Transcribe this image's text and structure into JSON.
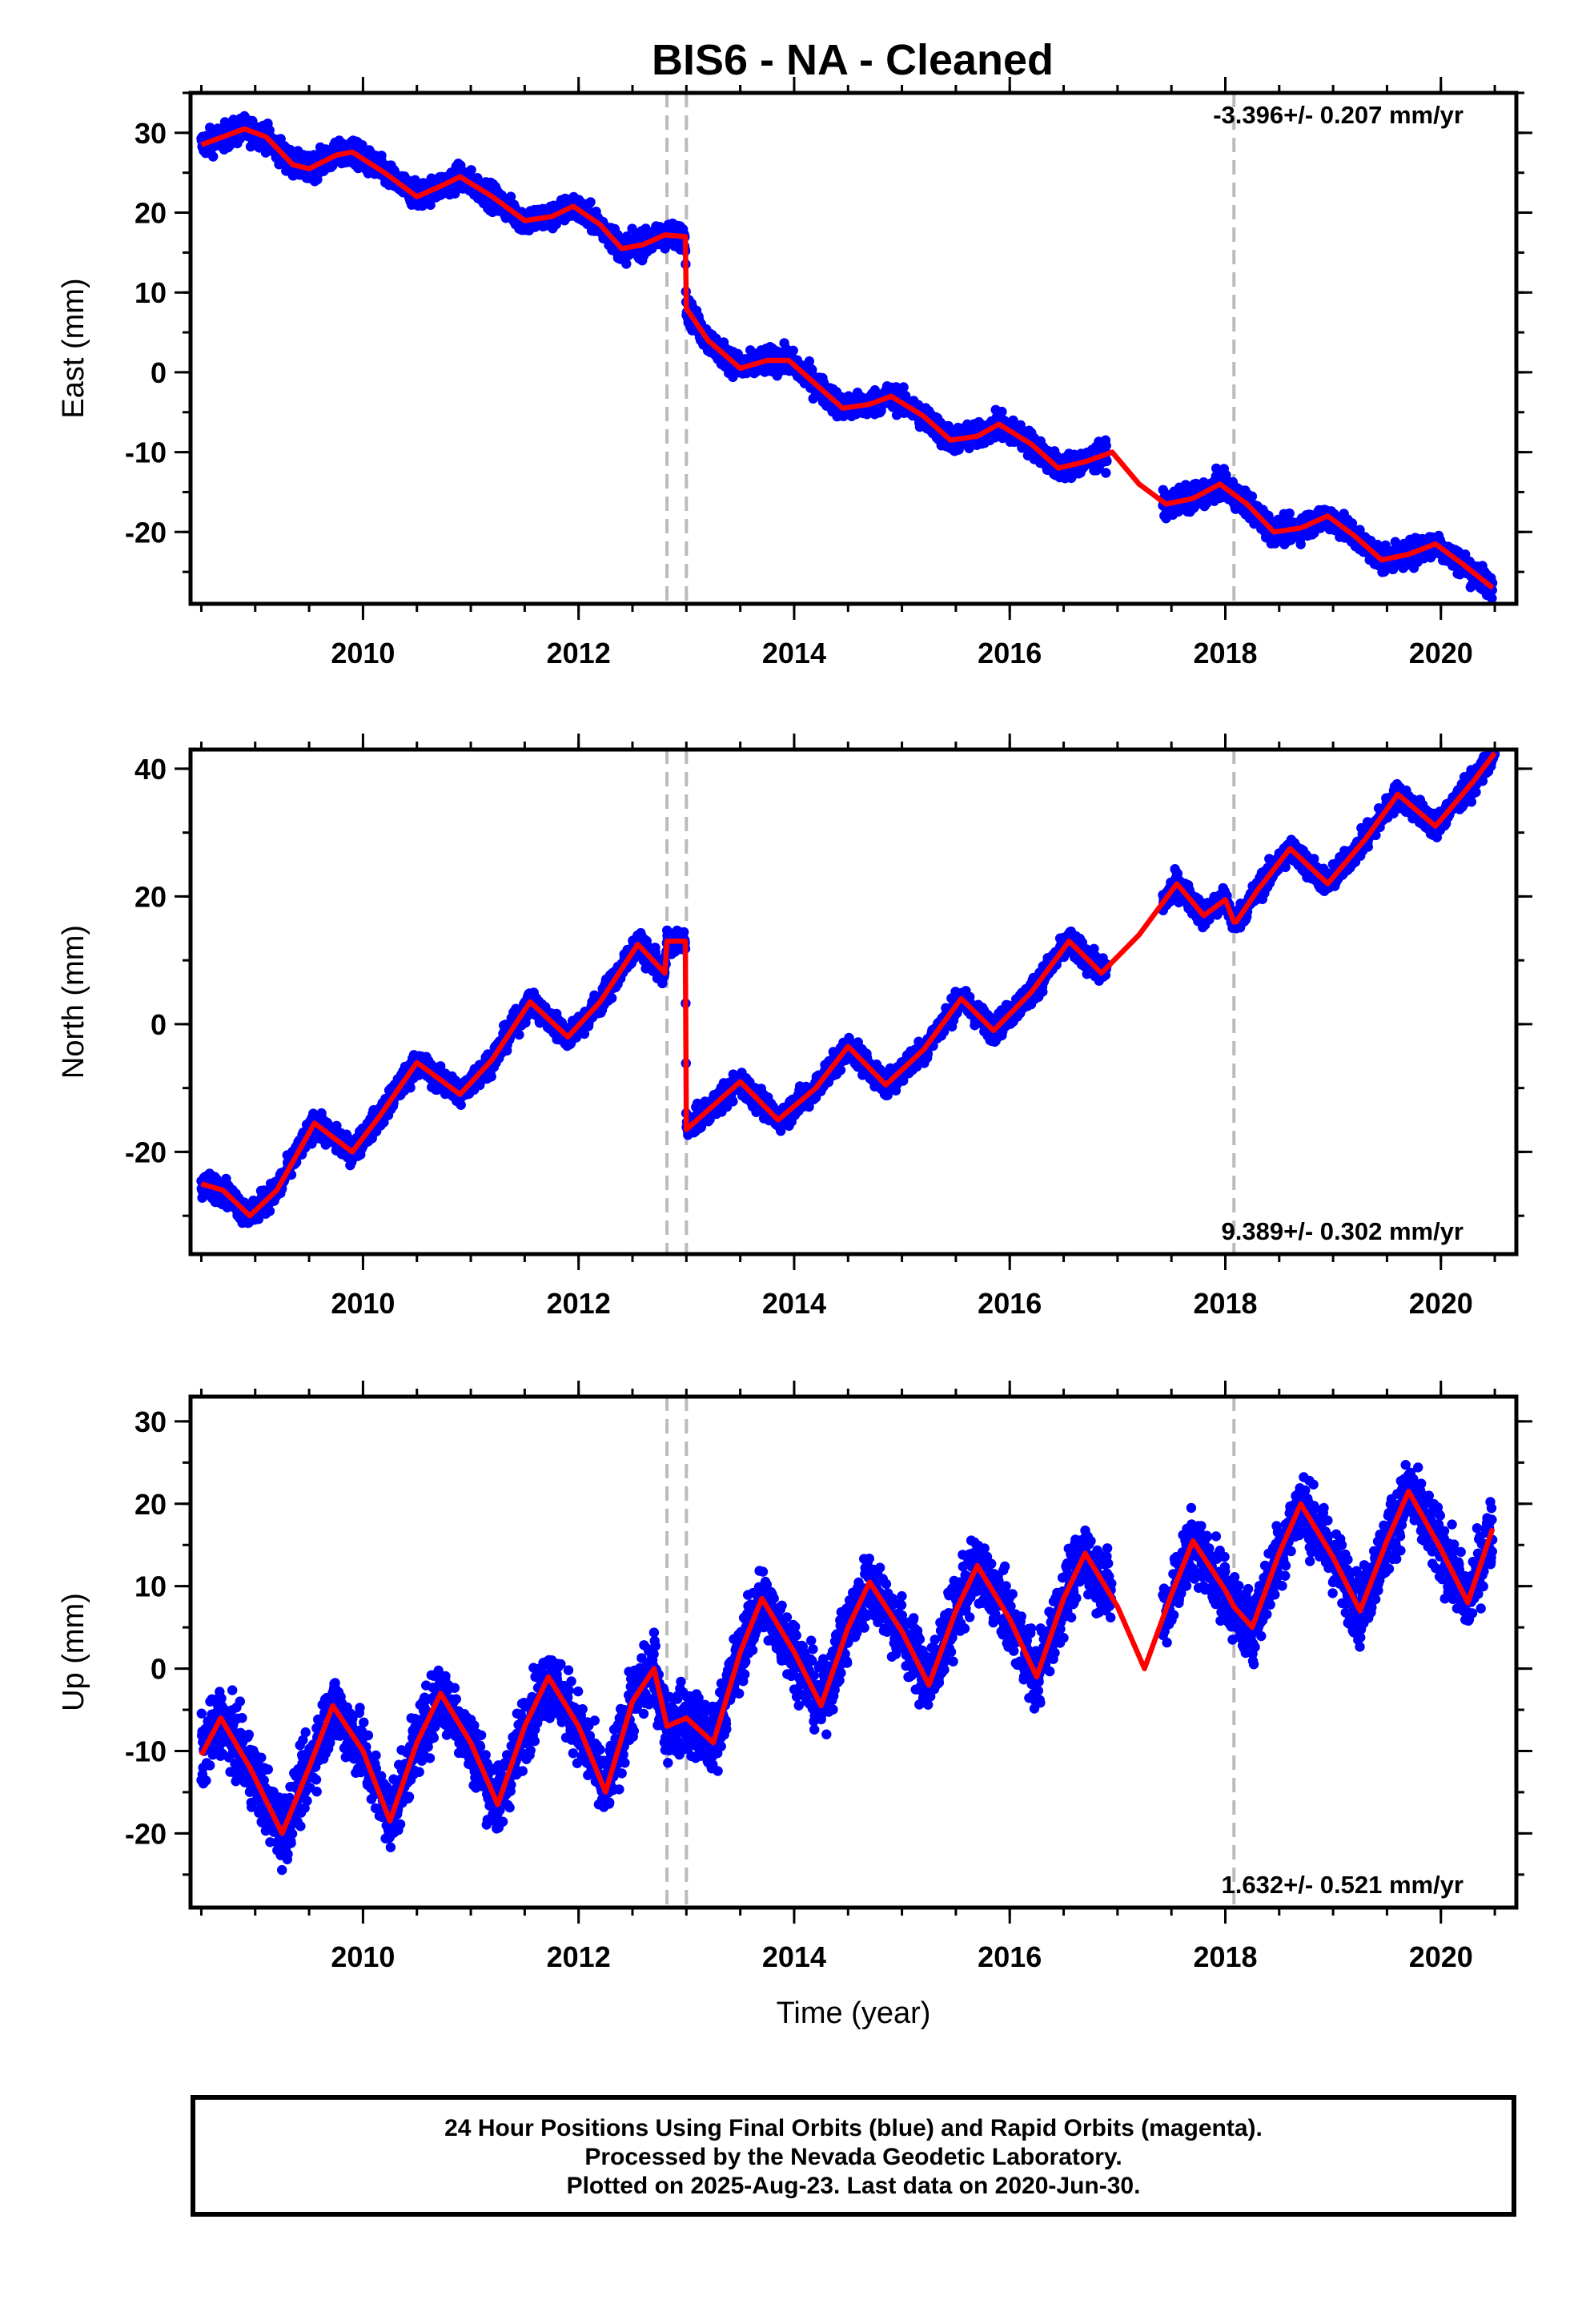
{
  "title": "BIS6  - NA - Cleaned",
  "colors": {
    "points": "#0000ff",
    "model": "#ff0000",
    "breaks": "#bbbbbb",
    "frame": "#000000"
  },
  "chart_data": [
    {
      "type": "scatter",
      "name": "east",
      "ylabel": "East (mm)",
      "xlabel": "",
      "xlim": [
        2008.4,
        2020.7
      ],
      "ylim": [
        -29,
        35
      ],
      "xticks": [
        2010,
        2012,
        2014,
        2016,
        2018,
        2020
      ],
      "yticks": [
        -20,
        -10,
        0,
        10,
        20,
        30
      ],
      "breaks": [
        2012.82,
        2013.0,
        2018.08
      ],
      "annotation": "-3.396+/- 0.207 mm/yr",
      "annotation_position": "top-right",
      "model": {
        "x": [
          2008.5,
          2008.9,
          2009.1,
          2009.35,
          2009.5,
          2009.75,
          2009.9,
          2010.2,
          2010.5,
          2010.75,
          2010.9,
          2011.2,
          2011.5,
          2011.75,
          2011.95,
          2012.2,
          2012.4,
          2012.6,
          2012.8,
          2012.99,
          2013.0,
          2013.2,
          2013.5,
          2013.75,
          2013.95,
          2014.2,
          2014.45,
          2014.7,
          2014.9,
          2015.2,
          2015.45,
          2015.7,
          2015.9,
          2016.2,
          2016.45,
          2016.7,
          2016.95,
          2017.2,
          2017.45,
          2017.7,
          2017.95,
          2018.2,
          2018.45,
          2018.7,
          2018.95,
          2019.2,
          2019.45,
          2019.7,
          2019.95,
          2020.2,
          2020.48
        ],
        "y": [
          28.5,
          30.5,
          29.5,
          26.0,
          25.5,
          27.2,
          27.6,
          25.0,
          22.0,
          23.5,
          24.5,
          22.0,
          19.0,
          19.5,
          20.8,
          18.5,
          15.5,
          16.0,
          17.2,
          17.0,
          8.0,
          4.0,
          0.5,
          1.5,
          1.5,
          -1.5,
          -4.5,
          -4.0,
          -3.0,
          -5.5,
          -8.5,
          -8.0,
          -6.5,
          -9.0,
          -12.0,
          -11.2,
          -10.0,
          -14.0,
          -16.5,
          -15.8,
          -14.0,
          -16.5,
          -20.0,
          -19.5,
          -18.0,
          -20.5,
          -23.5,
          -22.8,
          -21.5,
          -24.0,
          -27.0
        ]
      }
    },
    {
      "type": "scatter",
      "name": "north",
      "ylabel": "North (mm)",
      "xlabel": "",
      "xlim": [
        2008.4,
        2020.7
      ],
      "ylim": [
        -36,
        43
      ],
      "xticks": [
        2010,
        2012,
        2014,
        2016,
        2018,
        2020
      ],
      "yticks": [
        -20,
        0,
        20,
        40
      ],
      "breaks": [
        2012.82,
        2013.0,
        2018.08
      ],
      "annotation": "9.389+/- 0.302 mm/yr",
      "annotation_position": "bottom-right",
      "model": {
        "x": [
          2008.5,
          2008.7,
          2008.95,
          2009.2,
          2009.55,
          2009.9,
          2010.15,
          2010.5,
          2010.9,
          2011.2,
          2011.55,
          2011.9,
          2012.2,
          2012.55,
          2012.8,
          2012.82,
          2012.99,
          2013.0,
          2013.2,
          2013.5,
          2013.85,
          2014.2,
          2014.5,
          2014.85,
          2015.2,
          2015.55,
          2015.85,
          2016.2,
          2016.55,
          2016.85,
          2017.2,
          2017.55,
          2017.8,
          2018.0,
          2018.08,
          2018.1,
          2018.3,
          2018.6,
          2018.95,
          2019.3,
          2019.6,
          2019.95,
          2020.3,
          2020.5
        ],
        "y": [
          -25.0,
          -26.0,
          -30.0,
          -26.0,
          -15.5,
          -20.0,
          -14.5,
          -6.0,
          -11.0,
          -5.5,
          3.5,
          -2.0,
          3.5,
          12.5,
          8.0,
          13.0,
          13.0,
          -16.5,
          -13.5,
          -9.0,
          -15.0,
          -10.0,
          -3.5,
          -9.5,
          -4.0,
          4.0,
          -1.0,
          5.0,
          13.0,
          8.0,
          14.0,
          22.0,
          17.0,
          19.5,
          16.0,
          16.0,
          21.0,
          27.5,
          22.0,
          29.0,
          36.0,
          31.0,
          38.0,
          42.5
        ]
      }
    },
    {
      "type": "scatter",
      "name": "up",
      "ylabel": "Up (mm)",
      "xlabel": "Time (year)",
      "xlim": [
        2008.4,
        2020.7
      ],
      "ylim": [
        -29,
        33
      ],
      "xticks": [
        2010,
        2012,
        2014,
        2016,
        2018,
        2020
      ],
      "yticks": [
        -20,
        -10,
        0,
        10,
        20,
        30
      ],
      "breaks": [
        2012.82,
        2013.0,
        2018.08
      ],
      "annotation": "1.632+/- 0.521 mm/yr",
      "annotation_position": "bottom-right",
      "model": {
        "x": [
          2008.5,
          2008.68,
          2008.95,
          2009.25,
          2009.5,
          2009.72,
          2010.0,
          2010.25,
          2010.5,
          2010.72,
          2011.0,
          2011.25,
          2011.5,
          2011.72,
          2012.0,
          2012.25,
          2012.5,
          2012.7,
          2012.82,
          2013.0,
          2013.25,
          2013.5,
          2013.7,
          2014.0,
          2014.25,
          2014.5,
          2014.7,
          2015.0,
          2015.25,
          2015.5,
          2015.7,
          2016.0,
          2016.25,
          2016.5,
          2016.7,
          2017.0,
          2017.25,
          2017.5,
          2017.7,
          2018.0,
          2018.08,
          2018.25,
          2018.5,
          2018.7,
          2019.0,
          2019.25,
          2019.5,
          2019.7,
          2020.0,
          2020.25,
          2020.48
        ],
        "y": [
          -10.5,
          -6.0,
          -12.0,
          -20.0,
          -12.0,
          -4.5,
          -10.0,
          -18.5,
          -9.0,
          -3.0,
          -9.0,
          -16.5,
          -7.0,
          -1.0,
          -7.0,
          -15.0,
          -4.0,
          0.0,
          -7.0,
          -6.0,
          -9.0,
          2.0,
          8.5,
          2.0,
          -4.5,
          5.0,
          10.5,
          4.5,
          -2.0,
          7.0,
          12.5,
          6.0,
          -1.0,
          8.5,
          14.0,
          7.5,
          0.0,
          9.0,
          15.5,
          9.5,
          7.5,
          5.0,
          14.0,
          20.0,
          13.5,
          7.0,
          15.5,
          21.5,
          14.5,
          8.0,
          17.0
        ]
      },
      "gap": [
        2016.95,
        2017.42
      ],
      "scatter": 3.4
    }
  ],
  "footer": {
    "line1": "24 Hour Positions Using Final Orbits (blue) and Rapid Orbits (magenta).",
    "line2": "Processed by the Nevada Geodetic Laboratory.",
    "line3": "Plotted on 2025-Aug-23. Last data on 2020-Jun-30."
  }
}
